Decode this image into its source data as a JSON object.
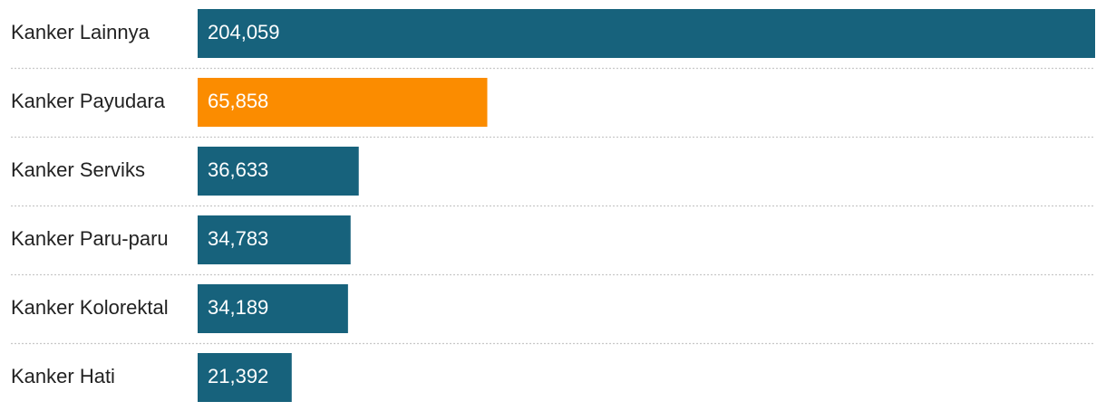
{
  "chart_data": {
    "type": "bar",
    "orientation": "horizontal",
    "categories": [
      "Kanker Lainnya",
      "Kanker Payudara",
      "Kanker Serviks",
      "Kanker Paru-paru",
      "Kanker Kolorektal",
      "Kanker Hati"
    ],
    "values": [
      204059,
      65858,
      36633,
      34783,
      34189,
      21392
    ],
    "value_labels": [
      "204,059",
      "65,858",
      "36,633",
      "34,783",
      "34,189",
      "21,392"
    ],
    "colors": [
      "#17627c",
      "#fb8c00",
      "#17627c",
      "#17627c",
      "#17627c",
      "#17627c"
    ]
  }
}
